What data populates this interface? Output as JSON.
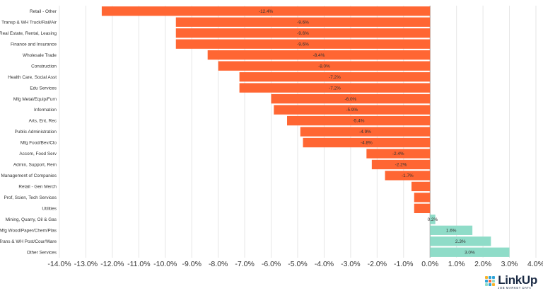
{
  "chart_data": {
    "type": "bar",
    "orientation": "horizontal",
    "title": "",
    "xlabel": "",
    "ylabel": "",
    "xlim": [
      -14,
      4
    ],
    "x_ticks": [
      -14,
      -13,
      -12,
      -11,
      -10,
      -9,
      -8,
      -7,
      -6,
      -5,
      -4,
      -3,
      -2,
      -1,
      0,
      1,
      2,
      3,
      4
    ],
    "tick_format": "%",
    "grid": true,
    "colors": {
      "negative": "#ff6633",
      "positive": "#8fdcc8"
    },
    "categories": [
      "Retail - Other",
      "Transp & WH Truck/Rail/Air",
      "Real Estate, Rental, Leasing",
      "Finance and Insurance",
      "Wholesale Trade",
      "Construction",
      "Health Care, Social Asst",
      "Edu Services",
      "Mfg Metal/Equip/Furn",
      "Information",
      "Arts, Ent, Rec",
      "Public Administration",
      "Mfg Food/Bev/Clo",
      "Accom, Food Serv",
      "Admin, Support, Rem",
      "Management of Companies",
      "Retail - Gen Merch",
      "Prof, Scien, Tech Services",
      "Utilities",
      "Mining, Quarry, Oil & Gas",
      "Mfg Wood/Paper/Chem/Plas",
      "Trans & WH Post/Cour/Ware",
      "Other Services"
    ],
    "values": [
      -12.4,
      -9.6,
      -9.6,
      -9.6,
      -8.4,
      -8.0,
      -7.2,
      -7.2,
      -6.0,
      -5.9,
      -5.4,
      -4.9,
      -4.8,
      -2.4,
      -2.2,
      -1.7,
      -0.7,
      -0.6,
      -0.6,
      0.2,
      1.6,
      2.3,
      3.0
    ],
    "data_labels": [
      "-12.4%",
      "-9.6%",
      "-9.6%",
      "-9.6%",
      "-8.4%",
      "-8.0%",
      "-7.2%",
      "-7.2%",
      "-6.0%",
      "-5.9%",
      "-5.4%",
      "-4.9%",
      "-4.8%",
      "-2.4%",
      "-2.2%",
      "-1.7%",
      "",
      "",
      "",
      "0.2%",
      "1.6%",
      "2.3%",
      "3.0%"
    ]
  },
  "logo": {
    "name": "LinkUp",
    "tagline": "JOB MARKET DATA"
  }
}
